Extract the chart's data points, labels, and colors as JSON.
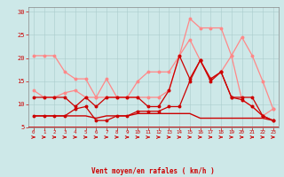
{
  "x": [
    0,
    1,
    2,
    3,
    4,
    5,
    6,
    7,
    8,
    9,
    10,
    11,
    12,
    13,
    14,
    15,
    16,
    17,
    18,
    19,
    20,
    21,
    22,
    23
  ],
  "line_flat": [
    7.5,
    7.5,
    7.5,
    7.5,
    7.5,
    7.5,
    7.0,
    7.5,
    7.5,
    7.5,
    8.0,
    8.0,
    8.0,
    8.0,
    8.0,
    8.0,
    7.0,
    7.0,
    7.0,
    7.0,
    7.0,
    7.0,
    7.0,
    6.5
  ],
  "line_mid1": [
    7.5,
    7.5,
    7.5,
    7.5,
    9.0,
    9.5,
    6.5,
    6.5,
    7.5,
    7.5,
    8.5,
    8.5,
    8.5,
    9.5,
    9.5,
    15.0,
    19.5,
    15.0,
    17.0,
    11.5,
    11.0,
    9.5,
    7.5,
    6.5
  ],
  "line_mid2": [
    11.5,
    11.5,
    11.5,
    11.5,
    9.5,
    11.5,
    9.5,
    11.5,
    11.5,
    11.5,
    11.5,
    9.5,
    9.5,
    13.0,
    20.5,
    15.5,
    19.5,
    15.5,
    17.0,
    11.5,
    11.5,
    11.5,
    7.5,
    6.5
  ],
  "line_hi1": [
    13.0,
    11.5,
    11.5,
    12.5,
    13.0,
    11.5,
    11.5,
    11.5,
    11.5,
    11.5,
    11.5,
    11.5,
    11.5,
    13.0,
    20.5,
    24.0,
    19.5,
    15.5,
    17.0,
    20.5,
    11.0,
    9.5,
    7.5,
    9.0
  ],
  "line_hi2": [
    20.5,
    20.5,
    20.5,
    17.0,
    15.5,
    15.5,
    11.5,
    15.5,
    11.5,
    11.5,
    15.0,
    17.0,
    17.0,
    17.0,
    20.5,
    28.5,
    26.5,
    26.5,
    26.5,
    20.5,
    24.5,
    20.5,
    15.0,
    9.0
  ],
  "bg_color": "#cde8e8",
  "grid_color": "#aacccc",
  "dark_red": "#cc0000",
  "light_red": "#ff8888",
  "xlabel": "Vent moyen/en rafales ( km/h )",
  "yticks": [
    5,
    10,
    15,
    20,
    25,
    30
  ],
  "ylim_low": 5,
  "ylim_high": 31,
  "xlim_low": -0.5,
  "xlim_high": 23.5
}
